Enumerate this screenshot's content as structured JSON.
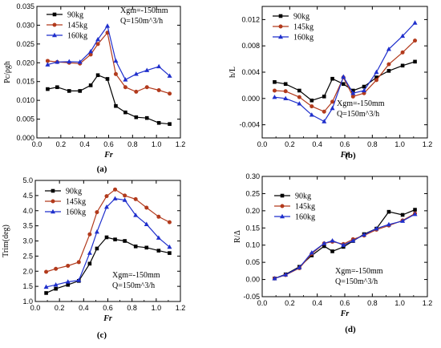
{
  "figure": {
    "colors": {
      "s90": "#000000",
      "s145": "#b23a1c",
      "s160": "#1f2fcc"
    }
  },
  "chart_data": [
    {
      "panel_label": "(a)",
      "type": "line",
      "xlabel": "Fr",
      "ylabel": "Pc/ρgh",
      "xlim": [
        0.0,
        1.2
      ],
      "ylim": [
        0.0,
        0.035
      ],
      "xticks": [
        "0.0",
        "0.2",
        "0.4",
        "0.6",
        "0.8",
        "1.0",
        "1.2"
      ],
      "yticks": [
        "0.000",
        "0.005",
        "0.010",
        "0.015",
        "0.020",
        "0.025",
        "0.030",
        "0.035"
      ],
      "legend_position": "top-left",
      "annotation": [
        "Xgm=-150mm",
        "Q=150m^3/h"
      ],
      "x": [
        0.09,
        0.17,
        0.27,
        0.36,
        0.45,
        0.51,
        0.59,
        0.66,
        0.74,
        0.83,
        0.92,
        1.02,
        1.11
      ],
      "series": [
        {
          "name": "90kg",
          "marker": "square",
          "color_key": "s90",
          "values": [
            0.013,
            0.0135,
            0.0125,
            0.0125,
            0.014,
            0.0167,
            0.0157,
            0.0085,
            0.0068,
            0.0055,
            0.0053,
            0.004,
            0.0037
          ]
        },
        {
          "name": "145kg",
          "marker": "circle",
          "color_key": "s145",
          "values": [
            0.0205,
            0.0202,
            0.02,
            0.0198,
            0.0222,
            0.025,
            0.028,
            0.017,
            0.0135,
            0.0123,
            0.0135,
            0.0127,
            0.0118
          ]
        },
        {
          "name": "160kg",
          "marker": "triangle",
          "color_key": "s160",
          "values": [
            0.0195,
            0.0202,
            0.0203,
            0.0202,
            0.023,
            0.0262,
            0.0298,
            0.0205,
            0.0155,
            0.017,
            0.018,
            0.019,
            0.0165
          ]
        }
      ]
    },
    {
      "panel_label": "(b)",
      "type": "line",
      "xlabel": "Fr",
      "ylabel": "h/L",
      "xlim": [
        0.0,
        1.2
      ],
      "ylim": [
        -0.006,
        0.014
      ],
      "xticks": [
        "0.0",
        "0.2",
        "0.4",
        "0.6",
        "0.8",
        "1.0",
        "1.2"
      ],
      "yticks": [
        "-0.004",
        "0.000",
        "0.004",
        "0.008",
        "0.012"
      ],
      "ytick_values": [
        -0.004,
        0.0,
        0.004,
        0.008,
        0.012
      ],
      "legend_position": "top-left",
      "annotation": [
        "Xgm=-150mm",
        "Q=150m^3/h"
      ],
      "x": [
        0.09,
        0.17,
        0.27,
        0.36,
        0.45,
        0.51,
        0.59,
        0.66,
        0.74,
        0.83,
        0.92,
        1.02,
        1.11
      ],
      "series": [
        {
          "name": "90kg",
          "marker": "square",
          "color_key": "s90",
          "values": [
            0.0025,
            0.0022,
            0.0012,
            -0.0003,
            0.0003,
            0.003,
            0.0022,
            0.0012,
            0.0018,
            0.0032,
            0.0042,
            0.005,
            0.0056
          ]
        },
        {
          "name": "145kg",
          "marker": "circle",
          "color_key": "s145",
          "values": [
            0.0012,
            0.0011,
            0.0002,
            -0.0012,
            -0.002,
            -0.0005,
            0.0032,
            0.0003,
            0.0008,
            0.0028,
            0.0052,
            0.007,
            0.0088
          ]
        },
        {
          "name": "160kg",
          "marker": "triangle",
          "color_key": "s160",
          "values": [
            0.0002,
            0.0,
            -0.0008,
            -0.0025,
            -0.0035,
            -0.0015,
            0.0033,
            0.0008,
            0.0012,
            0.004,
            0.0075,
            0.0095,
            0.0115
          ]
        }
      ]
    },
    {
      "panel_label": "(c)",
      "type": "line",
      "xlabel": "Fr",
      "ylabel": "Trim(deg)",
      "xlim": [
        0.0,
        1.2
      ],
      "ylim": [
        1.0,
        5.0
      ],
      "xticks": [
        "0.0",
        "0.2",
        "0.4",
        "0.6",
        "0.8",
        "1.0",
        "1.2"
      ],
      "yticks": [
        "1.0",
        "1.5",
        "2.0",
        "2.5",
        "3.0",
        "3.5",
        "4.0",
        "4.5",
        "5.0"
      ],
      "legend_position": "top-left",
      "annotation": [
        "Xgm=-150mm",
        "Q=150m^3/h"
      ],
      "x": [
        0.09,
        0.17,
        0.27,
        0.36,
        0.45,
        0.51,
        0.59,
        0.66,
        0.74,
        0.83,
        0.92,
        1.02,
        1.11
      ],
      "series": [
        {
          "name": "90kg",
          "marker": "square",
          "color_key": "s90",
          "values": [
            1.28,
            1.42,
            1.55,
            1.68,
            2.25,
            2.75,
            3.12,
            3.05,
            3.0,
            2.82,
            2.78,
            2.68,
            2.6
          ]
        },
        {
          "name": "145kg",
          "marker": "circle",
          "color_key": "s145",
          "values": [
            1.98,
            2.08,
            2.18,
            2.3,
            3.22,
            3.95,
            4.48,
            4.7,
            4.5,
            4.38,
            4.1,
            3.8,
            3.62
          ]
        },
        {
          "name": "160kg",
          "marker": "triangle",
          "color_key": "s160",
          "values": [
            1.48,
            1.55,
            1.65,
            1.7,
            2.6,
            3.3,
            4.12,
            4.4,
            4.35,
            3.85,
            3.55,
            3.1,
            2.8
          ]
        }
      ]
    },
    {
      "panel_label": "(d)",
      "type": "line",
      "xlabel": "Fr",
      "ylabel": "R/Δ",
      "xlim": [
        0.0,
        1.2
      ],
      "ylim": [
        -0.05,
        0.3
      ],
      "xticks": [
        "0.0",
        "0.2",
        "0.4",
        "0.6",
        "0.8",
        "1.0",
        "1.2"
      ],
      "yticks": [
        "-0.05",
        "0.00",
        "0.05",
        "0.10",
        "0.15",
        "0.20",
        "0.25",
        "0.30"
      ],
      "legend_position": "top-left",
      "annotation": [
        "Xgm=-150mm",
        "Q=150m^3/h"
      ],
      "x": [
        0.09,
        0.17,
        0.27,
        0.36,
        0.45,
        0.51,
        0.59,
        0.66,
        0.74,
        0.83,
        0.92,
        1.02,
        1.11
      ],
      "series": [
        {
          "name": "90kg",
          "marker": "square",
          "color_key": "s90",
          "values": [
            0.003,
            0.015,
            0.037,
            0.07,
            0.097,
            0.082,
            0.095,
            0.112,
            0.132,
            0.148,
            0.197,
            0.188,
            0.203
          ]
        },
        {
          "name": "145kg",
          "marker": "circle",
          "color_key": "s145",
          "values": [
            0.003,
            0.013,
            0.033,
            0.075,
            0.105,
            0.11,
            0.103,
            0.117,
            0.128,
            0.145,
            0.157,
            0.172,
            0.192
          ]
        },
        {
          "name": "160kg",
          "marker": "triangle",
          "color_key": "s160",
          "values": [
            0.003,
            0.014,
            0.035,
            0.078,
            0.105,
            0.113,
            0.1,
            0.113,
            0.13,
            0.148,
            0.16,
            0.17,
            0.19
          ]
        }
      ]
    }
  ]
}
